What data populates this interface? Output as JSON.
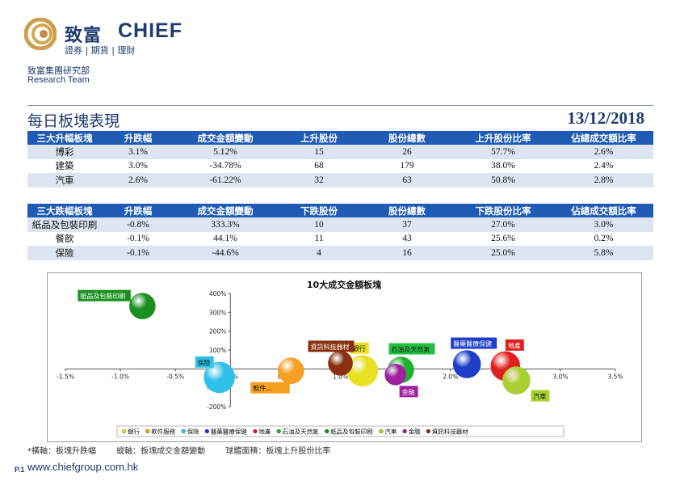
{
  "header": {
    "logo_cn": "致富",
    "logo_en": "CHIEF",
    "logo_sub": "證券 | 期貨 | 理財",
    "dept_cn": "致富集團研究部",
    "dept_en": "Research Team"
  },
  "page_title": "每日板塊表現",
  "date": "13/12/2018",
  "up_table": {
    "headers": [
      "三大升幅板塊",
      "升跌幅",
      "成交金額變動",
      "上升股份",
      "股份總數",
      "上升股份比率",
      "佔總成交額比率"
    ],
    "rows": [
      [
        "博彩",
        "3.1%",
        "5.12%",
        "15",
        "26",
        "57.7%",
        "2.6%"
      ],
      [
        "建築",
        "3.0%",
        "-34.78%",
        "68",
        "179",
        "38.0%",
        "2.4%"
      ],
      [
        "汽車",
        "2.6%",
        "-61.22%",
        "32",
        "63",
        "50.8%",
        "2.8%"
      ]
    ]
  },
  "down_table": {
    "headers": [
      "三大跌幅板塊",
      "升跌幅",
      "成交金額變動",
      "下跌股份",
      "股份總數",
      "下跌股份比率",
      "佔總成交額比率"
    ],
    "rows": [
      [
        "紙品及包裝印刷",
        "-0.8%",
        "333.3%",
        "10",
        "37",
        "27.0%",
        "3.0%"
      ],
      [
        "餐飲",
        "-0.1%",
        "44.1%",
        "11",
        "43",
        "25.6%",
        "0.2%"
      ],
      [
        "保險",
        "-0.1%",
        "-44.6%",
        "4",
        "16",
        "25.0%",
        "5.8%"
      ]
    ]
  },
  "chart_data": {
    "type": "scatter",
    "title": "10大成交金額板塊",
    "x_ticks": [
      "-1.5%",
      "-1.0%",
      "-0.5%",
      "0.0%",
      "0.5%",
      "1.0%",
      "1.5%",
      "2.0%",
      "2.5%",
      "3.0%",
      "3.5%"
    ],
    "y_ticks": [
      "-200%",
      "-100%",
      "0%",
      "100%",
      "200%",
      "300%",
      "400%"
    ],
    "xlim": [
      -1.5,
      3.5
    ],
    "ylim": [
      -200,
      400
    ],
    "legend_position": "bottom",
    "series": [
      {
        "name": "銀行",
        "x": 1.2,
        "y": -10,
        "r": 19,
        "color": "#e8e020",
        "label_bg": "#e8e020",
        "label_color": "#111111"
      },
      {
        "name": "軟件服務",
        "x": 0.55,
        "y": -10,
        "r": 16,
        "color": "#f5a020",
        "label_bg": "#f5a020",
        "label_color": "#111111"
      },
      {
        "name": "保險",
        "x": -0.1,
        "y": -45,
        "r": 19,
        "color": "#30c0e8",
        "label_bg": "#30c0e8",
        "label_color": "#111111"
      },
      {
        "name": "醫藥醫療保健",
        "x": 2.15,
        "y": 25,
        "r": 17,
        "color": "#1f3ec8",
        "label_bg": "#1f3ec8",
        "label_color": "#ffffff"
      },
      {
        "name": "地產",
        "x": 2.5,
        "y": 15,
        "r": 18,
        "color": "#e02020",
        "label_bg": "#e02020",
        "label_color": "#ffffff"
      },
      {
        "name": "石油及天然氣",
        "x": 1.55,
        "y": -5,
        "r": 16,
        "color": "#20b030",
        "label_bg": "#20c040",
        "label_color": "#111111"
      },
      {
        "name": "紙品及包裝印刷",
        "x": -0.8,
        "y": 333,
        "r": 16,
        "color": "#1a9020",
        "label_bg": "#1a9020",
        "label_color": "#ffffff"
      },
      {
        "name": "汽車",
        "x": 2.6,
        "y": -61,
        "r": 17,
        "color": "#a8d030",
        "label_bg": "#a8d030",
        "label_color": "#111111"
      },
      {
        "name": "金融",
        "x": 1.5,
        "y": -30,
        "r": 13,
        "color": "#a020a0",
        "label_bg": "#a020a0",
        "label_color": "#ffffff"
      },
      {
        "name": "資訊科技器材",
        "x": 1.0,
        "y": 30,
        "r": 15,
        "color": "#8a3010",
        "label_bg": "#8a3010",
        "label_color": "#ffffff"
      }
    ],
    "labels_shown": [
      "銀行",
      "軟件...",
      "保險",
      "醫藥醫療保健",
      "地產",
      "石油及天然氣",
      "紙品及包裝印刷",
      "汽車",
      "金融",
      "資訊科技器材"
    ]
  },
  "footnote": {
    "x_axis": "*橫軸：板塊升跌幅",
    "y_axis": "縱軸：板塊成交金額變動",
    "bubble": "球體面積：板塊上升股份比率"
  },
  "page_number": "P.1",
  "url": "www.chiefgroup.com.hk"
}
